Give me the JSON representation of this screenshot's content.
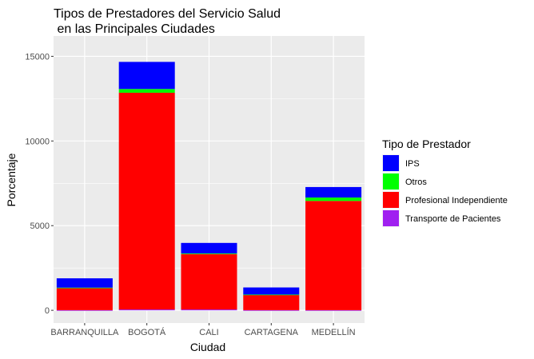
{
  "chart_data": {
    "type": "bar",
    "stacked": true,
    "title_lines": [
      "Tipos de Prestadores del Servicio Salud",
      " en las Principales Ciudades"
    ],
    "xlabel": "Ciudad",
    "ylabel": "Porcentaje",
    "categories": [
      "BARRANQUILLA",
      "BOGOTÁ",
      "CALI",
      "CARTAGENA",
      "MEDELLÍN"
    ],
    "ylim": [
      -750,
      16200
    ],
    "yticks": [
      0,
      5000,
      10000,
      15000
    ],
    "ytick_labels": [
      "0",
      "5000",
      "10000",
      "15000"
    ],
    "grid": true,
    "legend_position": "right",
    "legend_title": "Tipo de Prestador",
    "series": [
      {
        "name": "IPS",
        "color": "#0000ff",
        "values": [
          550,
          1600,
          620,
          420,
          620
        ]
      },
      {
        "name": "Otros",
        "color": "#00ff00",
        "values": [
          30,
          220,
          40,
          20,
          200
        ]
      },
      {
        "name": "Profesional Independiente",
        "color": "#ff0000",
        "values": [
          1300,
          12800,
          3270,
          900,
          6450
        ]
      },
      {
        "name": "Transporte de Pacientes",
        "color": "#a020f0",
        "values": [
          10,
          50,
          50,
          10,
          10
        ]
      }
    ]
  }
}
